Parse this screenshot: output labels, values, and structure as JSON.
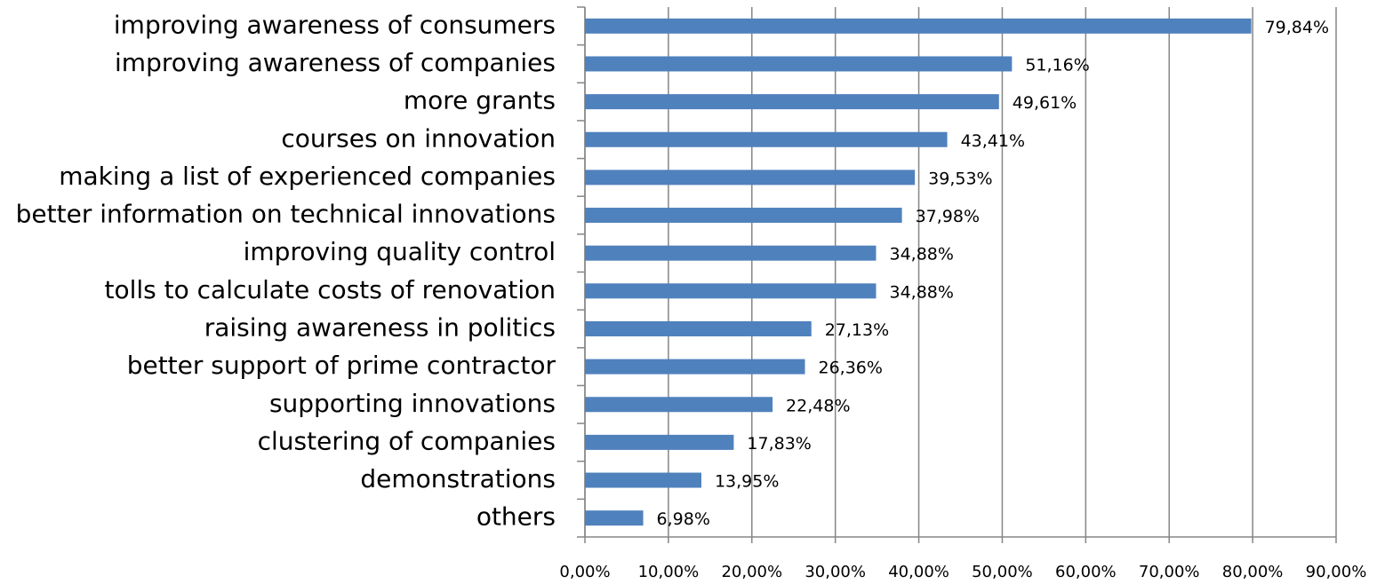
{
  "chart_data": {
    "type": "bar",
    "orientation": "horizontal",
    "categories": [
      "improving awareness of consumers",
      "improving awareness of companies",
      "more grants",
      "courses on innovation",
      "making a list of experienced companies",
      "better information on technical innovations",
      "improving quality control",
      "tolls to calculate costs of renovation",
      "raising awareness in politics",
      "better support of prime contractor",
      "supporting innovations",
      "clustering of companies",
      "demonstrations",
      "others"
    ],
    "values": [
      79.84,
      51.16,
      49.61,
      43.41,
      39.53,
      37.98,
      34.88,
      34.88,
      27.13,
      26.36,
      22.48,
      17.83,
      13.95,
      6.98
    ],
    "value_labels": [
      "79,84%",
      "51,16%",
      "49,61%",
      "43,41%",
      "39,53%",
      "37,98%",
      "34,88%",
      "34,88%",
      "27,13%",
      "26,36%",
      "22,48%",
      "17,83%",
      "13,95%",
      "6,98%"
    ],
    "color": "#4f81bd",
    "xlim": [
      0,
      90
    ],
    "xticks": [
      {
        "value": 0,
        "label": "0,00%"
      },
      {
        "value": 10,
        "label": "10,00%"
      },
      {
        "value": 20,
        "label": "20,00%"
      },
      {
        "value": 30,
        "label": "30,00%"
      },
      {
        "value": 40,
        "label": "40,00%"
      },
      {
        "value": 50,
        "label": "50,00%"
      },
      {
        "value": 60,
        "label": "60,00%"
      },
      {
        "value": 70,
        "label": "70,00%"
      },
      {
        "value": 80,
        "label": "80,00%"
      },
      {
        "value": 90,
        "label": "90,00%"
      }
    ],
    "grid": true
  }
}
